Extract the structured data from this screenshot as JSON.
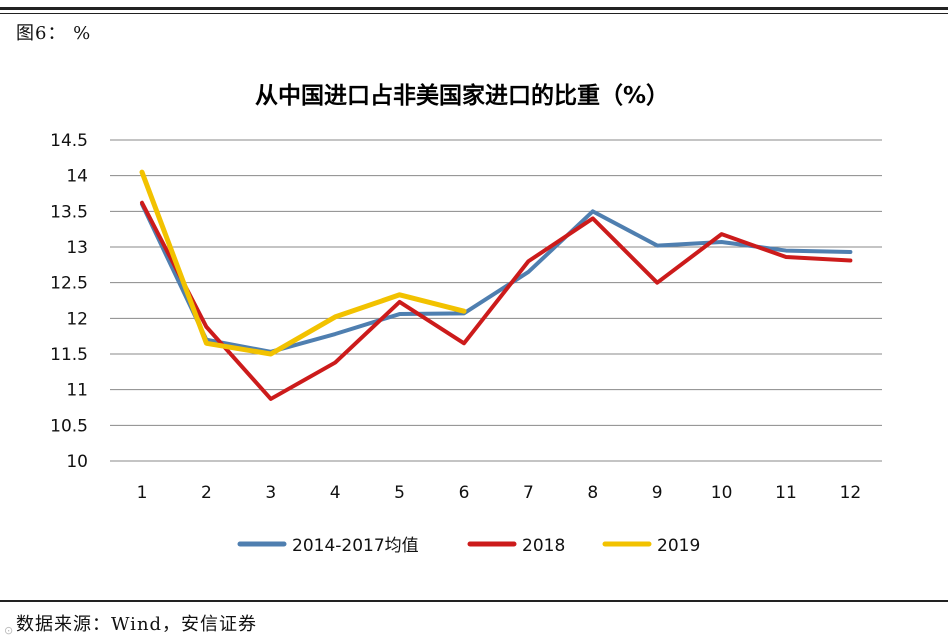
{
  "figure_label": "图6： %",
  "source_note": "数据来源：Wind，安信证券",
  "chart_data": {
    "type": "line",
    "title": "从中国进口占非美国家进口的比重（%）",
    "xlabel": "",
    "ylabel": "",
    "categories": [
      "1",
      "2",
      "3",
      "4",
      "5",
      "6",
      "7",
      "8",
      "9",
      "10",
      "11",
      "12"
    ],
    "yticks": [
      "14.5",
      "14",
      "13.5",
      "13",
      "12.5",
      "12",
      "11.5",
      "11",
      "10.5",
      "10"
    ],
    "ylim": [
      10,
      14.5
    ],
    "grid": true,
    "legend_position": "bottom",
    "series": [
      {
        "name": "2014-2017均值",
        "color": "#4f7fb0",
        "values": [
          13.6,
          11.7,
          11.53,
          11.78,
          12.06,
          12.07,
          12.65,
          13.5,
          13.02,
          13.07,
          12.95,
          12.93
        ]
      },
      {
        "name": "2018",
        "color": "#cc1b1b",
        "values": [
          13.62,
          11.88,
          10.87,
          11.38,
          12.23,
          11.65,
          12.8,
          13.4,
          12.5,
          13.18,
          12.86,
          12.81
        ]
      },
      {
        "name": "2019",
        "color": "#f2c200",
        "values": [
          14.05,
          11.65,
          11.5,
          12.02,
          12.33,
          12.1,
          null,
          null,
          null,
          null,
          null,
          null
        ]
      }
    ]
  }
}
